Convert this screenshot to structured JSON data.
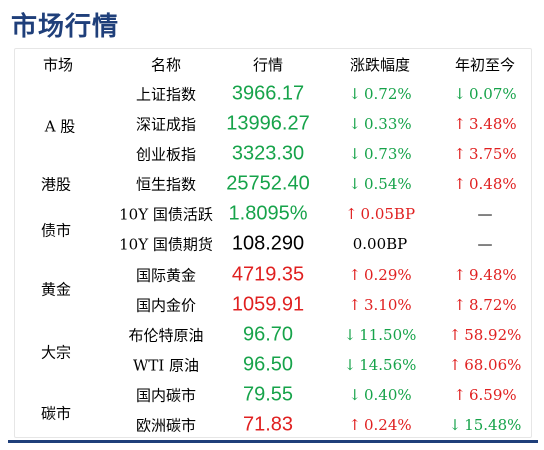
{
  "title": "市场行情",
  "headers": {
    "market": "市场",
    "name": "名称",
    "price": "行情",
    "change": "涨跌幅度",
    "ytd": "年初至今"
  },
  "markets": [
    "A 股",
    "港股",
    "债市",
    "黄金",
    "大宗",
    "碳市"
  ],
  "rows": [
    {
      "name": "上证指数",
      "price": "3966.17",
      "change": "0.72%",
      "ytd": "0.07%"
    },
    {
      "name": "深证成指",
      "price": "13996.27",
      "change": "0.33%",
      "ytd": "3.48%"
    },
    {
      "name": "创业板指",
      "price": "3323.30",
      "change": "0.73%",
      "ytd": "3.75%"
    },
    {
      "name": "恒生指数",
      "price": "25752.40",
      "change": "0.54%",
      "ytd": "0.48%"
    },
    {
      "name": "10Y 国债活跃",
      "price": "1.8095%",
      "change": "0.05BP",
      "ytd": "—"
    },
    {
      "name": "10Y 国债期货",
      "price": "108.290",
      "change": "0.00BP",
      "ytd": "—"
    },
    {
      "name": "国际黄金",
      "price": "4719.35",
      "change": "0.29%",
      "ytd": "9.48%"
    },
    {
      "name": "国内金价",
      "price": "1059.91",
      "change": "3.10%",
      "ytd": "8.72%"
    },
    {
      "name": "布伦特原油",
      "price": "96.70",
      "change": "11.50%",
      "ytd": "58.92%"
    },
    {
      "name": "WTI 原油",
      "price": "96.50",
      "change": "14.56%",
      "ytd": "68.06%"
    },
    {
      "name": "国内碳市",
      "price": "79.55",
      "change": "0.40%",
      "ytd": "6.59%"
    },
    {
      "name": "欧洲碳市",
      "price": "71.83",
      "change": "0.24%",
      "ytd": "15.48%"
    }
  ],
  "colors": {
    "up": "#e02020",
    "down": "#16a34a",
    "title": "#1f3f7a"
  },
  "icons": {
    "up": "arrow-up-icon",
    "down": "arrow-down-icon"
  },
  "direction": {
    "price": [
      "down",
      "down",
      "down",
      "down",
      "down",
      "flat",
      "up",
      "up",
      "down",
      "down",
      "down",
      "up"
    ],
    "change": [
      "down",
      "down",
      "down",
      "down",
      "up",
      "flat",
      "up",
      "up",
      "down",
      "down",
      "down",
      "up"
    ],
    "ytd": [
      "down",
      "up",
      "up",
      "up",
      "none",
      "none",
      "up",
      "up",
      "up",
      "up",
      "up",
      "down"
    ]
  }
}
